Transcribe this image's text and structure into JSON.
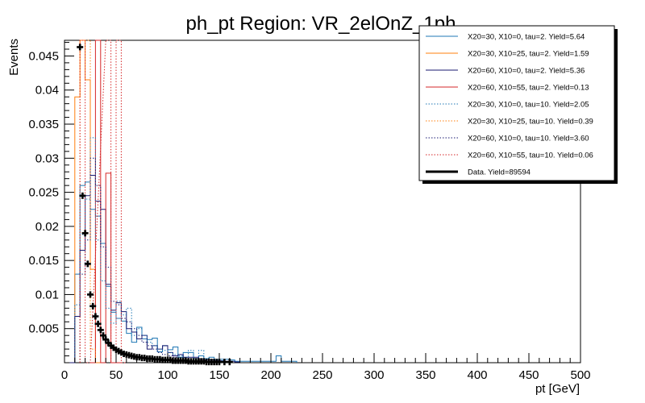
{
  "chart_data": {
    "type": "histogram",
    "title": "ph_pt Region: VR_2elOnZ_1ph",
    "xlabel": "pt [GeV]",
    "ylabel": "Events",
    "xlim": [
      0,
      500
    ],
    "ylim": [
      0,
      0.0473
    ],
    "bin_width": 5,
    "x_ticks": [
      0,
      50,
      100,
      150,
      200,
      250,
      300,
      350,
      400,
      450,
      500
    ],
    "y_ticks": [
      0.005,
      0.01,
      0.015,
      0.02,
      0.025,
      0.03,
      0.035,
      0.04,
      0.045
    ],
    "y_tick_labels": [
      "0.005",
      "0.01",
      "0.015",
      "0.02",
      "0.025",
      "0.03",
      "0.035",
      "0.04",
      "0.045"
    ],
    "legend_position": "top-right",
    "series": [
      {
        "name": "X20=30, X10=0, tau=2. Yield=5.64",
        "color": "#1f77b4",
        "style": "solid",
        "x": [
          5,
          10,
          15,
          20,
          25,
          30,
          35,
          40,
          45,
          50,
          55,
          60,
          65,
          70,
          75,
          80,
          85,
          90,
          95,
          100,
          105,
          110,
          115,
          120,
          125,
          130,
          135,
          140,
          145,
          150,
          155,
          160,
          165,
          170,
          175,
          180,
          185,
          190,
          195,
          200,
          205,
          210,
          215,
          220
        ],
        "values": [
          0,
          0.013,
          0.026,
          0.0265,
          0.0225,
          0.0215,
          0.0175,
          0.0112,
          0.0074,
          0.0065,
          0.0061,
          0.0043,
          0.003,
          0.0052,
          0.0035,
          0.0034,
          0.0036,
          0.0016,
          0.0025,
          0.0019,
          0.0023,
          0.0008,
          0.0015,
          0.0015,
          0.0006,
          0.001,
          0.0006,
          0.0008,
          0.0005,
          0.0005,
          0.0005,
          0.0004,
          0.0002,
          0.0002,
          0.0002,
          0.0002,
          0.0002,
          0.0002,
          0.0002,
          0.0002,
          0.001,
          0.0002,
          0.0002,
          0.0002
        ]
      },
      {
        "name": "X20=30, X10=25, tau=2. Yield=1.59",
        "color": "#ff7f0e",
        "style": "solid",
        "x": [
          10,
          15,
          20,
          25,
          30
        ],
        "values": [
          0.039,
          0.0475,
          0.0415,
          0.0137,
          0
        ]
      },
      {
        "name": "X20=60, X10=0, tau=2. Yield=5.36",
        "color": "#191970",
        "style": "solid",
        "x": [
          5,
          10,
          15,
          20,
          25,
          30,
          35,
          40,
          45,
          50,
          55,
          60,
          65,
          70,
          75,
          80,
          85,
          90,
          95,
          100,
          105,
          110,
          115,
          120,
          125,
          130,
          135,
          140,
          145,
          150,
          155,
          160,
          165
        ],
        "values": [
          0,
          0.0068,
          0.0165,
          0.0245,
          0.0275,
          0.0237,
          0.0225,
          0.0115,
          0.0077,
          0.0088,
          0.0075,
          0.005,
          0.0045,
          0.0035,
          0.004,
          0.002,
          0.0025,
          0.002,
          0.0025,
          0.0015,
          0.001,
          0.0012,
          0.0008,
          0.0008,
          0.0008,
          0.0005,
          0.0004,
          0.0004,
          0.0003,
          0.0003,
          0.0002,
          0.0002,
          0.0001
        ]
      },
      {
        "name": "X20=60, X10=55, tau=2. Yield=0.13",
        "color": "#d62728",
        "style": "solid",
        "x": [
          25,
          30,
          35,
          40,
          45,
          50
        ],
        "values": [
          0,
          0.0475,
          0,
          0.0278,
          0,
          0
        ]
      },
      {
        "name": "X20=30, X10=0, tau=10. Yield=2.05",
        "color": "#1f77b4",
        "style": "dotted",
        "x": [
          10,
          15,
          20,
          25,
          30,
          35,
          40,
          45,
          50,
          55,
          60,
          65,
          70,
          75,
          80,
          85,
          90,
          95,
          100,
          105,
          110,
          115,
          120,
          125,
          130,
          135,
          140,
          145,
          150
        ],
        "values": [
          0.0085,
          0.0188,
          0.024,
          0.033,
          0.018,
          0.012,
          0.008,
          0.0058,
          0.009,
          0.007,
          0.008,
          0.004,
          0.005,
          0.004,
          0.003,
          0.0025,
          0.002,
          0.0018,
          0.0015,
          0.0012,
          0.001,
          0.0008,
          0.0018,
          0.0005,
          0.0018,
          0.0005,
          0.0004,
          0.0004,
          0.0003
        ]
      },
      {
        "name": "X20=30, X10=25, tau=10. Yield=0.39",
        "color": "#ff7f0e",
        "style": "dotted",
        "x": [
          15,
          20,
          25
        ],
        "values": [
          0.0475,
          0.0475,
          0.002
        ]
      },
      {
        "name": "X20=60, X10=0, tau=10. Yield=3.60",
        "color": "#191970",
        "style": "dotted",
        "x": [
          15,
          20,
          25,
          30,
          35,
          40,
          45,
          50,
          55,
          60,
          65,
          70,
          75,
          80,
          85,
          90,
          95,
          100,
          105,
          110,
          115,
          120,
          125,
          130,
          135
        ],
        "values": [
          0.013,
          0.018,
          0.03,
          0.026,
          0.017,
          0.014,
          0.009,
          0.0085,
          0.0065,
          0.006,
          0.005,
          0.004,
          0.003,
          0.0025,
          0.002,
          0.0015,
          0.0012,
          0.001,
          0.0008,
          0.0006,
          0.0005,
          0.0004,
          0.0003,
          0.0002,
          0.0002
        ]
      },
      {
        "name": "X20=60, X10=55, tau=10. Yield=0.06",
        "color": "#d62728",
        "style": "dotted",
        "x": [
          15,
          20,
          40,
          45,
          50,
          55
        ],
        "values": [
          0.0475,
          0,
          0.0475,
          0,
          0.0475,
          0
        ]
      },
      {
        "name": "Data. Yield=89594",
        "color": "#000000",
        "style": "markers",
        "x": [
          15,
          17.5,
          20,
          22.5,
          25,
          27.5,
          30,
          32.5,
          35,
          37.5,
          40,
          42.5,
          45,
          47.5,
          50,
          52.5,
          55,
          57.5,
          60,
          62.5,
          65,
          67.5,
          70,
          72.5,
          75,
          77.5,
          80,
          82.5,
          85,
          87.5,
          90,
          92.5,
          95,
          97.5,
          100,
          102.5,
          105,
          107.5,
          110,
          112.5,
          115,
          117.5,
          120,
          122.5,
          125,
          127.5,
          130,
          132.5,
          135,
          137.5,
          140,
          142.5,
          145,
          147.5,
          150,
          155,
          160
        ],
        "values": [
          0.0463,
          0.0245,
          0.019,
          0.0145,
          0.01,
          0.0083,
          0.0068,
          0.0057,
          0.0048,
          0.004,
          0.0034,
          0.0029,
          0.0025,
          0.0022,
          0.0019,
          0.0017,
          0.0015,
          0.0013,
          0.0012,
          0.0011,
          0.001,
          0.0009,
          0.0008,
          0.0008,
          0.0007,
          0.0007,
          0.0006,
          0.0006,
          0.0006,
          0.0005,
          0.0005,
          0.0005,
          0.0004,
          0.0004,
          0.0004,
          0.0004,
          0.0003,
          0.0003,
          0.0003,
          0.0003,
          0.0003,
          0.0003,
          0.0002,
          0.0002,
          0.0002,
          0.0002,
          0.0002,
          0.0002,
          0.0002,
          0.0001,
          0.0001,
          0.0001,
          0.0001,
          0.0001,
          0.0001,
          0.0001,
          0.0001
        ]
      }
    ]
  }
}
